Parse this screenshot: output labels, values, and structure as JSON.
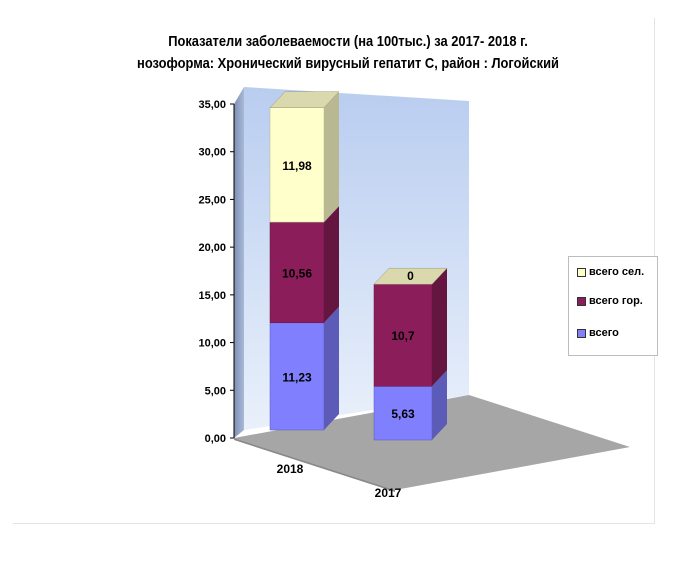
{
  "chart_data": {
    "type": "bar",
    "stacked": true,
    "three_d": true,
    "title_line1": "Показатели заболеваемости (на 100тыс.)  за  2017- 2018  г.",
    "title_line2": "нозоформа: Хронический вирусный  гепатит С, район : Логойский",
    "categories": [
      "2018",
      "2017"
    ],
    "series": [
      {
        "name": "всего",
        "values": [
          11.23,
          5.63
        ],
        "labels": [
          "11,23",
          "5,63"
        ],
        "color": "#8080ff"
      },
      {
        "name": "всего гор.",
        "values": [
          10.56,
          10.7
        ],
        "labels": [
          "10,56",
          "10,7"
        ],
        "color": "#8b1e5a"
      },
      {
        "name": "всего сел.",
        "values": [
          11.98,
          0
        ],
        "labels": [
          "11,98",
          "0"
        ],
        "color": "#ffffcc"
      }
    ],
    "ylim": [
      0,
      35
    ],
    "yticks": [
      "0,00",
      "5,00",
      "10,00",
      "15,00",
      "20,00",
      "25,00",
      "30,00",
      "35,00"
    ],
    "legend_position": "right",
    "grid": false
  }
}
